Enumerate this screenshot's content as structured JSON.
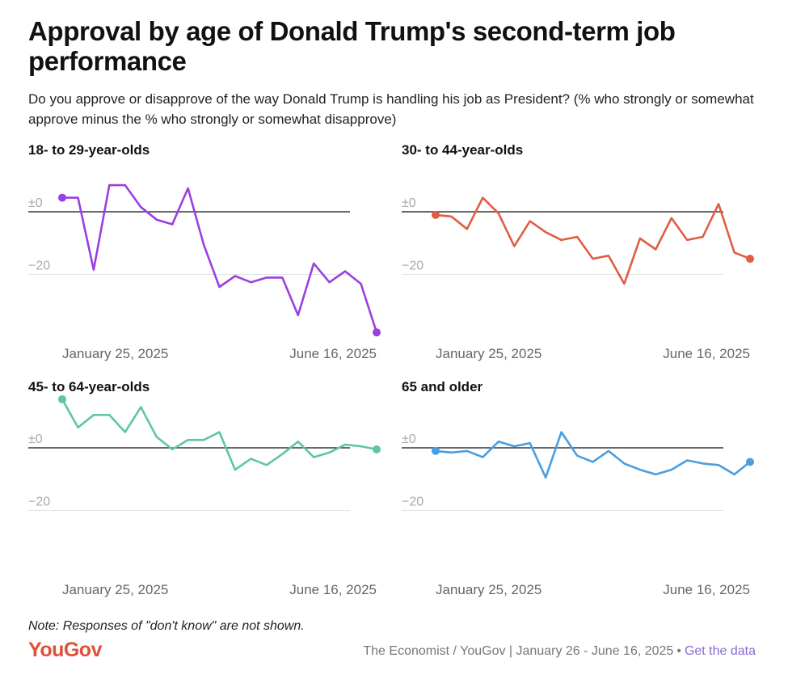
{
  "title": "Approval by age of Donald Trump's second-term job performance",
  "subtitle": "Do you approve or disapprove of the way Donald Trump is handling his job as President? (% who strongly or somewhat approve minus the % who strongly or somewhat disapprove)",
  "note": "Note: Responses of \"don't know\" are not shown.",
  "footer": {
    "logo": "YouGov",
    "source": "The Economist / YouGov | January 26 - June 16, 2025",
    "separator": "•",
    "link": "Get the data"
  },
  "colors": {
    "logo": "#e0503a",
    "link": "#8a6bd6",
    "zero_line": "#111111",
    "grid": "#e2e2e2"
  },
  "chart_data": [
    {
      "type": "line",
      "title": "18- to 29-year-olds",
      "color": "#9b3fe0",
      "y_ticks": [
        0,
        -20
      ],
      "y_tick_labels": [
        "±0",
        "−20"
      ],
      "ylim": [
        -40,
        10
      ],
      "x_tick_labels": [
        "January 25, 2025",
        "June 16, 2025"
      ],
      "values": [
        4.5,
        4.5,
        -18.5,
        8.5,
        8.5,
        1.5,
        -2.5,
        -4,
        7.5,
        -10.5,
        -24,
        -20.5,
        -22.5,
        -21,
        -21,
        -33,
        -16.5,
        -22.5,
        -19,
        -23,
        -38.5
      ]
    },
    {
      "type": "line",
      "title": "30- to 44-year-olds",
      "color": "#e05d44",
      "y_ticks": [
        0,
        -20
      ],
      "y_tick_labels": [
        "±0",
        "−20"
      ],
      "ylim": [
        -40,
        10
      ],
      "x_tick_labels": [
        "January 25, 2025",
        "June 16, 2025"
      ],
      "values": [
        -1,
        -1.5,
        -5.5,
        4.5,
        -0.5,
        -11,
        -3,
        -6.5,
        -9,
        -8,
        -15,
        -14,
        -23,
        -8.5,
        -12,
        -2,
        -9,
        -8,
        2.5,
        -13,
        -15
      ]
    },
    {
      "type": "line",
      "title": "45- to 64-year-olds",
      "color": "#5ec79d",
      "y_ticks": [
        0,
        -20
      ],
      "y_tick_labels": [
        "±0",
        "−20"
      ],
      "ylim": [
        -40,
        10
      ],
      "x_tick_labels": [
        "January 25, 2025",
        "June 16, 2025"
      ],
      "values": [
        15.5,
        6.5,
        10.5,
        10.5,
        5,
        13,
        3.5,
        -0.5,
        2.5,
        2.5,
        5,
        -7,
        -3.5,
        -5.5,
        -2,
        2,
        -3,
        -1.5,
        1,
        0.5,
        -0.5
      ]
    },
    {
      "type": "line",
      "title": "65 and older",
      "color": "#4a9ee0",
      "y_ticks": [
        0,
        -20
      ],
      "y_tick_labels": [
        "±0",
        "−20"
      ],
      "ylim": [
        -40,
        10
      ],
      "x_tick_labels": [
        "January 25, 2025",
        "June 16, 2025"
      ],
      "values": [
        -1,
        -1.5,
        -1,
        -3,
        2,
        0.5,
        1.5,
        -9.5,
        5,
        -2.5,
        -4.5,
        -1,
        -5,
        -7,
        -8.5,
        -7,
        -4,
        -5,
        -5.5,
        -8.5,
        -4.5
      ]
    }
  ]
}
